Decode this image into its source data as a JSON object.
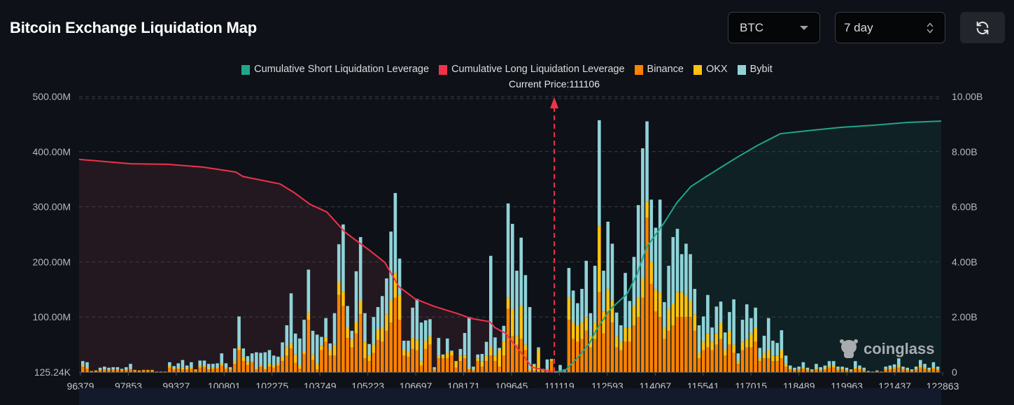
{
  "header": {
    "title": "Bitcoin Exchange Liquidation Map",
    "coin_select": {
      "value": "BTC",
      "icon": "caret-down-icon"
    },
    "range_select": {
      "value": "7 day",
      "icon": "up-down-chevron-icon"
    },
    "refresh_button": {
      "icon": "refresh-icon"
    }
  },
  "watermark": {
    "text": "coinglass",
    "icon": "coinglass-logo-icon"
  },
  "chart_data": {
    "type": "bar",
    "title": "",
    "legend": [
      {
        "name": "Cumulative Short Liquidation Leverage",
        "color": "#1fa68a"
      },
      {
        "name": "Cumulative Long Liquidation Leverage",
        "color": "#f0324a"
      },
      {
        "name": "Binance",
        "color": "#ff8200"
      },
      {
        "name": "OKX",
        "color": "#ffc20e"
      },
      {
        "name": "Bybit",
        "color": "#8fd3d8"
      }
    ],
    "legend_position": "top-center",
    "current_price_label": "Current Price:111106",
    "current_price": 111106,
    "x_range": [
      96379,
      122863
    ],
    "x_ticks": [
      "96379",
      "97853",
      "99327",
      "100801",
      "102275",
      "103749",
      "105223",
      "106697",
      "108171",
      "109645",
      "111119",
      "112593",
      "114067",
      "115541",
      "117015",
      "118489",
      "119963",
      "121437",
      "122863"
    ],
    "y_left": {
      "unit": "M",
      "range": [
        0,
        500
      ],
      "ticks": [
        "125.24K",
        "100.00M",
        "200.00M",
        "300.00M",
        "400.00M",
        "500.00M"
      ]
    },
    "y_right": {
      "unit": "B",
      "range": [
        0,
        10
      ],
      "ticks": [
        "0",
        "2.00B",
        "4.00B",
        "6.00B",
        "8.00B",
        "10.00B"
      ]
    },
    "grid": true,
    "bar_stack_order": [
      "Binance",
      "OKX",
      "Bybit"
    ],
    "bars_millions": [
      [
        10,
        3,
        7
      ],
      [
        6,
        3,
        9
      ],
      [
        2,
        0,
        0
      ],
      [
        2,
        1,
        0
      ],
      [
        3,
        1,
        4
      ],
      [
        4,
        1,
        5
      ],
      [
        3,
        1,
        4
      ],
      [
        4,
        1,
        4
      ],
      [
        4,
        1,
        4
      ],
      [
        3,
        1,
        2
      ],
      [
        3,
        1,
        5
      ],
      [
        5,
        1,
        9
      ],
      [
        3,
        1,
        0
      ],
      [
        2,
        1,
        0
      ],
      [
        3,
        1,
        0
      ],
      [
        3,
        1,
        0
      ],
      [
        3,
        1,
        0
      ],
      [
        1,
        0,
        0
      ],
      [
        1,
        0,
        0
      ],
      [
        1,
        0,
        0
      ],
      [
        8,
        3,
        7
      ],
      [
        5,
        2,
        4
      ],
      [
        6,
        3,
        7
      ],
      [
        5,
        3,
        14
      ],
      [
        5,
        2,
        5
      ],
      [
        6,
        3,
        9
      ],
      [
        3,
        1,
        1
      ],
      [
        8,
        3,
        10
      ],
      [
        9,
        3,
        9
      ],
      [
        5,
        2,
        8
      ],
      [
        6,
        2,
        7
      ],
      [
        7,
        2,
        7
      ],
      [
        12,
        3,
        19
      ],
      [
        6,
        2,
        8
      ],
      [
        4,
        2,
        3
      ],
      [
        15,
        5,
        23
      ],
      [
        40,
        5,
        56
      ],
      [
        20,
        8,
        15
      ],
      [
        13,
        5,
        11
      ],
      [
        18,
        2,
        14
      ],
      [
        5,
        2,
        29
      ],
      [
        10,
        3,
        22
      ],
      [
        5,
        2,
        29
      ],
      [
        10,
        6,
        24
      ],
      [
        8,
        4,
        18
      ],
      [
        12,
        4,
        12
      ],
      [
        20,
        8,
        26
      ],
      [
        30,
        16,
        39
      ],
      [
        43,
        10,
        90
      ],
      [
        17,
        15,
        38
      ],
      [
        6,
        6,
        49
      ],
      [
        33,
        5,
        57
      ],
      [
        95,
        13,
        78
      ],
      [
        22,
        10,
        43
      ],
      [
        5,
        10,
        53
      ],
      [
        40,
        8,
        16
      ],
      [
        55,
        8,
        35
      ],
      [
        30,
        10,
        12
      ],
      [
        30,
        20,
        57
      ],
      [
        140,
        25,
        67
      ],
      [
        120,
        27,
        121
      ],
      [
        62,
        18,
        40
      ],
      [
        45,
        15,
        15
      ],
      [
        70,
        22,
        91
      ],
      [
        105,
        25,
        115
      ],
      [
        25,
        30,
        52
      ],
      [
        20,
        10,
        21
      ],
      [
        35,
        15,
        50
      ],
      [
        58,
        20,
        40
      ],
      [
        55,
        25,
        58
      ],
      [
        75,
        30,
        65
      ],
      [
        90,
        40,
        125
      ],
      [
        135,
        45,
        145
      ],
      [
        95,
        45,
        66
      ],
      [
        30,
        10,
        17
      ],
      [
        28,
        10,
        19
      ],
      [
        42,
        20,
        55
      ],
      [
        40,
        18,
        75
      ],
      [
        12,
        8,
        70
      ],
      [
        42,
        15,
        37
      ],
      [
        50,
        15,
        31
      ],
      [
        4,
        2,
        3
      ],
      [
        25,
        5,
        32
      ],
      [
        25,
        4,
        3
      ],
      [
        25,
        10,
        26
      ],
      [
        30,
        8,
        1
      ],
      [
        8,
        12,
        0
      ],
      [
        20,
        10,
        12
      ],
      [
        25,
        5,
        41
      ],
      [
        5,
        2,
        93
      ],
      [
        3,
        1,
        6
      ],
      [
        20,
        5,
        7
      ],
      [
        10,
        10,
        13
      ],
      [
        20,
        10,
        25
      ],
      [
        30,
        15,
        166
      ],
      [
        20,
        10,
        33
      ],
      [
        10,
        30,
        4
      ],
      [
        30,
        25,
        29
      ],
      [
        115,
        20,
        171
      ],
      [
        65,
        50,
        154
      ],
      [
        50,
        15,
        119
      ],
      [
        60,
        60,
        124
      ],
      [
        40,
        10,
        126
      ],
      [
        2,
        3,
        113
      ],
      [
        3,
        10,
        2
      ],
      [
        2,
        40,
        3
      ],
      [
        2,
        2,
        2
      ],
      [
        3,
        3,
        17
      ],
      [
        20,
        2,
        2
      ],
      [
        1,
        0,
        1
      ],
      [
        2,
        1,
        10
      ],
      [
        2,
        1,
        2
      ],
      [
        95,
        40,
        54
      ],
      [
        60,
        30,
        58
      ],
      [
        55,
        30,
        40
      ],
      [
        60,
        30,
        61
      ],
      [
        75,
        25,
        102
      ],
      [
        45,
        20,
        42
      ],
      [
        60,
        30,
        103
      ],
      [
        145,
        120,
        192
      ],
      [
        70,
        40,
        74
      ],
      [
        110,
        40,
        123
      ],
      [
        90,
        40,
        103
      ],
      [
        45,
        20,
        43
      ],
      [
        40,
        15,
        30
      ],
      [
        55,
        25,
        100
      ],
      [
        55,
        25,
        49
      ],
      [
        85,
        35,
        89
      ],
      [
        100,
        35,
        168
      ],
      [
        135,
        35,
        236
      ],
      [
        280,
        30,
        145
      ],
      [
        160,
        40,
        113
      ],
      [
        110,
        40,
        112
      ],
      [
        100,
        45,
        168
      ],
      [
        60,
        20,
        47
      ],
      [
        75,
        40,
        78
      ],
      [
        85,
        40,
        120
      ],
      [
        100,
        45,
        115
      ],
      [
        100,
        45,
        69
      ],
      [
        100,
        40,
        93
      ],
      [
        100,
        30,
        84
      ],
      [
        75,
        30,
        46
      ],
      [
        25,
        10,
        50
      ],
      [
        40,
        15,
        46
      ],
      [
        45,
        25,
        70
      ],
      [
        40,
        15,
        26
      ],
      [
        50,
        20,
        49
      ],
      [
        60,
        30,
        38
      ],
      [
        30,
        10,
        32
      ],
      [
        50,
        25,
        34
      ],
      [
        35,
        15,
        82
      ],
      [
        15,
        5,
        14
      ],
      [
        40,
        15,
        40
      ],
      [
        45,
        15,
        63
      ],
      [
        45,
        25,
        28
      ],
      [
        55,
        25,
        37
      ],
      [
        20,
        5,
        19
      ],
      [
        25,
        10,
        31
      ],
      [
        25,
        15,
        58
      ],
      [
        20,
        10,
        27
      ],
      [
        20,
        10,
        23
      ],
      [
        25,
        15,
        36
      ],
      [
        10,
        5,
        15
      ],
      [
        5,
        2,
        5
      ],
      [
        3,
        1,
        4
      ],
      [
        4,
        2,
        4
      ],
      [
        6,
        3,
        9
      ],
      [
        3,
        1,
        4
      ],
      [
        2,
        1,
        2
      ],
      [
        5,
        2,
        8
      ],
      [
        3,
        2,
        4
      ],
      [
        5,
        2,
        5
      ],
      [
        8,
        3,
        9
      ],
      [
        8,
        4,
        8
      ],
      [
        4,
        2,
        4
      ],
      [
        5,
        2,
        3
      ],
      [
        3,
        2,
        3
      ],
      [
        2,
        1,
        2
      ],
      [
        6,
        3,
        11
      ],
      [
        5,
        2,
        5
      ],
      [
        3,
        1,
        4
      ],
      [
        1,
        0,
        1
      ],
      [
        1,
        0,
        0
      ],
      [
        2,
        0,
        1
      ],
      [
        1,
        0,
        0
      ],
      [
        4,
        2,
        4
      ],
      [
        5,
        2,
        5
      ],
      [
        6,
        2,
        6
      ],
      [
        8,
        4,
        13
      ],
      [
        4,
        2,
        4
      ],
      [
        3,
        2,
        3
      ],
      [
        2,
        1,
        2
      ],
      [
        4,
        2,
        4
      ],
      [
        8,
        4,
        10
      ],
      [
        6,
        2,
        7
      ],
      [
        3,
        1,
        4
      ],
      [
        6,
        3,
        9
      ],
      [
        4,
        2,
        4
      ]
    ],
    "cumulative_long_billions": [
      [
        96379,
        7.72
      ],
      [
        97970,
        7.56
      ],
      [
        99110,
        7.54
      ],
      [
        100184,
        7.44
      ],
      [
        101194,
        7.26
      ],
      [
        101410,
        7.1
      ],
      [
        102549,
        6.83
      ],
      [
        102979,
        6.52
      ],
      [
        103473,
        6.09
      ],
      [
        103989,
        5.81
      ],
      [
        104548,
        5.08
      ],
      [
        104978,
        4.7
      ],
      [
        105279,
        4.44
      ],
      [
        105773,
        3.98
      ],
      [
        106203,
        3.1
      ],
      [
        106698,
        2.66
      ],
      [
        107278,
        2.39
      ],
      [
        107987,
        2.13
      ],
      [
        108417,
        1.95
      ],
      [
        108998,
        1.83
      ],
      [
        109148,
        1.62
      ],
      [
        109492,
        1.4
      ],
      [
        109707,
        1.07
      ],
      [
        110008,
        0.63
      ],
      [
        110288,
        0.18
      ],
      [
        110653,
        0.08
      ],
      [
        110933,
        0
      ]
    ],
    "cumulative_short_billions": [
      [
        110976,
        0
      ],
      [
        111298,
        0.05
      ],
      [
        111664,
        0.48
      ],
      [
        112072,
        1.07
      ],
      [
        112287,
        1.57
      ],
      [
        112696,
        2.28
      ],
      [
        113212,
        2.84
      ],
      [
        113513,
        3.53
      ],
      [
        113814,
        4.54
      ],
      [
        114329,
        5.38
      ],
      [
        114738,
        6.14
      ],
      [
        115168,
        6.73
      ],
      [
        115662,
        7.11
      ],
      [
        116178,
        7.49
      ],
      [
        116587,
        7.79
      ],
      [
        117210,
        8.22
      ],
      [
        117920,
        8.65
      ],
      [
        118758,
        8.76
      ],
      [
        119768,
        8.88
      ],
      [
        120800,
        8.96
      ],
      [
        121832,
        9.06
      ],
      [
        122863,
        9.11
      ]
    ]
  }
}
